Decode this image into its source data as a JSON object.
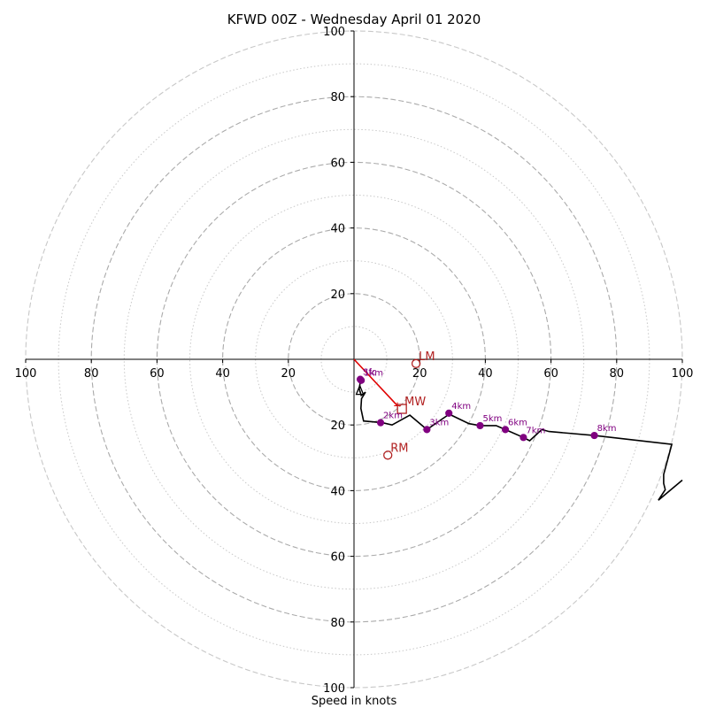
{
  "chart_data": {
    "type": "hodograph",
    "title": "KFWD 00Z - Wednesday April 01 2020",
    "xlabel": "Speed in knots",
    "xlim": [
      -100,
      100
    ],
    "ylim": [
      -100,
      100
    ],
    "grid": {
      "major_rings": [
        10,
        30,
        50,
        70,
        90,
        100
      ],
      "minor_rings": [
        20,
        40,
        60,
        80
      ]
    },
    "x_ticks": [
      {
        "value": -100,
        "label": "100"
      },
      {
        "value": -80,
        "label": "80"
      },
      {
        "value": -60,
        "label": "60"
      },
      {
        "value": -40,
        "label": "40"
      },
      {
        "value": -20,
        "label": "20"
      },
      {
        "value": 20,
        "label": "20"
      },
      {
        "value": 40,
        "label": "40"
      },
      {
        "value": 60,
        "label": "60"
      },
      {
        "value": 80,
        "label": "80"
      },
      {
        "value": 100,
        "label": "100"
      }
    ],
    "y_ticks": [
      {
        "value": 100,
        "label": "100"
      },
      {
        "value": 80,
        "label": "80"
      },
      {
        "value": 60,
        "label": "60"
      },
      {
        "value": 40,
        "label": "40"
      },
      {
        "value": 20,
        "label": "20"
      },
      {
        "value": -20,
        "label": "20"
      },
      {
        "value": -40,
        "label": "40"
      },
      {
        "value": -60,
        "label": "60"
      },
      {
        "value": -80,
        "label": "80"
      },
      {
        "value": -100,
        "label": "100"
      }
    ],
    "hodograph_line": {
      "color": "#000000",
      "points": [
        [
          1.9,
          -7
        ],
        [
          1.6,
          -9
        ],
        [
          2.2,
          -11
        ],
        [
          3.5,
          -10
        ],
        [
          2.3,
          -12
        ],
        [
          2.1,
          -15
        ],
        [
          2.9,
          -18.8
        ],
        [
          8.6,
          -19.3
        ],
        [
          11.6,
          -20
        ],
        [
          17,
          -17
        ],
        [
          22.2,
          -21.4
        ],
        [
          26.4,
          -18.5
        ],
        [
          29,
          -16.7
        ],
        [
          35,
          -19.6
        ],
        [
          38.4,
          -20.2
        ],
        [
          43.3,
          -20.2
        ],
        [
          46.1,
          -21.4
        ],
        [
          51.6,
          -23.8
        ],
        [
          53.5,
          -24.8
        ],
        [
          57.2,
          -21.4
        ],
        [
          59.4,
          -22
        ],
        [
          73.2,
          -23.2
        ],
        [
          96.8,
          -25.9
        ],
        [
          94.3,
          -35.1
        ],
        [
          94.3,
          -37.8
        ],
        [
          94.8,
          -39.7
        ],
        [
          92.7,
          -42.9
        ],
        [
          100,
          -36.8
        ]
      ]
    },
    "height_markers": {
      "color": "#800080",
      "points": [
        {
          "label": "Sfc",
          "x": 1.9,
          "y": -6.1
        },
        {
          "label": "1km",
          "x": 2.2,
          "y": -6.4
        },
        {
          "label": "2km",
          "x": 8.1,
          "y": -19.3
        },
        {
          "label": "3km",
          "x": 22.2,
          "y": -21.4
        },
        {
          "label": "4km",
          "x": 28.9,
          "y": -16.4
        },
        {
          "label": "5km",
          "x": 38.4,
          "y": -20.2
        },
        {
          "label": "6km",
          "x": 46.1,
          "y": -21.4
        },
        {
          "label": "7km",
          "x": 51.6,
          "y": -23.8
        },
        {
          "label": "8km",
          "x": 73.2,
          "y": -23.2
        }
      ]
    },
    "storm_motion": {
      "color": "#b22222",
      "lm": {
        "label": "LM",
        "x": 18.9,
        "y": -1.3
      },
      "rm": {
        "label": "RM",
        "x": 10.3,
        "y": -29.2
      },
      "mw": {
        "label": "MW",
        "x": 14.6,
        "y": -15.1
      },
      "bunkers_vector": {
        "x": 13.2,
        "y": -14.1
      }
    }
  }
}
